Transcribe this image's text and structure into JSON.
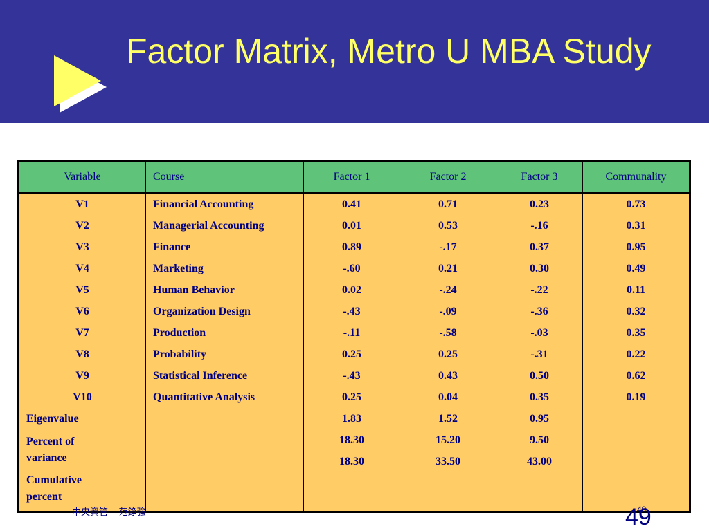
{
  "slide": {
    "title": "Factor Matrix, Metro U MBA Study",
    "colors": {
      "header_bg": "#333399",
      "title": "#ffff66",
      "table_header_bg": "#5fc37a",
      "table_body_bg": "#ffcc66",
      "text": "#000080"
    },
    "bullet_icon": "play-arrow-icon"
  },
  "table": {
    "headers": [
      "Variable",
      "Course",
      "Factor 1",
      "Factor 2",
      "Factor 3",
      "Communality"
    ],
    "variables": [
      "V1",
      "V2",
      "V3",
      "V4",
      "V5",
      "V6",
      "V7",
      "V8",
      "V9",
      "V10"
    ],
    "courses": [
      "Financial Accounting",
      "Managerial Accounting",
      "Finance",
      "Marketing",
      "Human Behavior",
      "Organization Design",
      "Production",
      "Probability",
      "Statistical Inference",
      "Quantitative Analysis"
    ],
    "factor1": [
      "0.41",
      "0.01",
      "0.89",
      "-.60",
      "0.02",
      "-.43",
      "-.11",
      "0.25",
      "-.43",
      "0.25"
    ],
    "factor2": [
      "0.71",
      "0.53",
      "-.17",
      "0.21",
      "-.24",
      "-.09",
      "-.58",
      "0.25",
      "0.43",
      "0.04"
    ],
    "factor3": [
      "0.23",
      "-.16",
      "0.37",
      "0.30",
      "-.22",
      "-.36",
      "-.03",
      "-.31",
      "0.50",
      "0.35"
    ],
    "communality": [
      "0.73",
      "0.31",
      "0.95",
      "0.49",
      "0.11",
      "0.32",
      "0.35",
      "0.22",
      "0.62",
      "0.19"
    ],
    "summary_labels": [
      "Eigenvalue",
      "Percent of variance",
      "Cumulative percent"
    ],
    "summary_factor1": [
      "1.83",
      "18.30",
      "18.30"
    ],
    "summary_factor2": [
      "1.52",
      "15.20",
      "33.50"
    ],
    "summary_factor3": [
      "0.95",
      "9.50",
      "43.00"
    ]
  },
  "footer": {
    "left_text": "中央資管──范錚強",
    "page_small": "49",
    "page_number": "49"
  }
}
